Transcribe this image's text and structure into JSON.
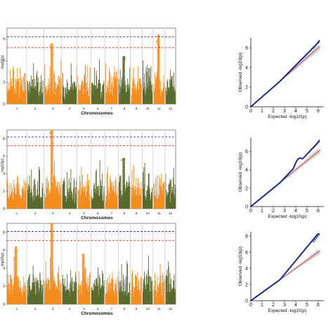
{
  "colors": {
    "orange": "#F28C1E",
    "green": "#5B6B2E",
    "blue_line": "#2F3FCC",
    "red_line": "#D23C3C",
    "qq_points": "#1A2A8C",
    "qq_line": "#D04848",
    "ci_band": "#C8C8C8"
  },
  "chart_data": [
    {
      "type": "scatter",
      "kind": "manhattan",
      "xlabel": "Chromosomes",
      "ylabel": "-log10(p)",
      "chromosomes": [
        "1",
        "2",
        "3",
        "4",
        "5",
        "6",
        "7",
        "8",
        "9",
        "10",
        "11",
        "12"
      ],
      "ylim": [
        0,
        7
      ],
      "yticks": [
        "0",
        "2",
        "4",
        "6"
      ],
      "thresholds": [
        6.2,
        5.2
      ],
      "peaks": [
        {
          "chromosome": "3",
          "value": 5.6
        },
        {
          "chromosome": "8",
          "value": 4.4
        },
        {
          "chromosome": "11",
          "value": 6.4
        }
      ]
    },
    {
      "type": "scatter",
      "kind": "qq",
      "xlabel": "Expected -log10(p)",
      "ylabel": "Observed -log10(p)",
      "xlim": [
        0,
        6.5
      ],
      "ylim": [
        0,
        7
      ],
      "xticks": [
        "0",
        "1",
        "2",
        "3",
        "4",
        "5",
        "6"
      ],
      "yticks": [
        "0",
        "2",
        "4",
        "6"
      ]
    },
    {
      "type": "scatter",
      "kind": "manhattan",
      "xlabel": "Chromosomes",
      "ylabel": "-log10(p)",
      "chromosomes": [
        "1",
        "2",
        "3",
        "4",
        "5",
        "6",
        "7",
        "8",
        "9",
        "10",
        "11",
        "12"
      ],
      "ylim": [
        0,
        9
      ],
      "yticks": [
        "0",
        "2",
        "4",
        "6",
        "8"
      ],
      "thresholds": [
        8.2,
        7.2
      ],
      "peaks": [
        {
          "chromosome": "3",
          "value": 9.0
        },
        {
          "chromosome": "8",
          "value": 5.8
        }
      ]
    },
    {
      "type": "scatter",
      "kind": "qq",
      "xlabel": "Expected -log10(p)",
      "ylabel": "Observed -log10(p)",
      "xlim": [
        0,
        6.5
      ],
      "ylim": [
        0,
        7.5
      ],
      "xticks": [
        "0",
        "1",
        "2",
        "3",
        "4",
        "5",
        "6"
      ],
      "yticks": [
        "0",
        "2",
        "4",
        "6"
      ]
    },
    {
      "type": "scatter",
      "kind": "manhattan",
      "xlabel": "Chromosomes",
      "ylabel": "-log10(p)",
      "chromosomes": [
        "1",
        "2",
        "3",
        "4",
        "5",
        "6",
        "7",
        "8",
        "9",
        "10",
        "11",
        "12"
      ],
      "ylim": [
        0,
        9
      ],
      "yticks": [
        "0",
        "2",
        "4",
        "6",
        "8"
      ],
      "thresholds": [
        8.1,
        7.1
      ],
      "peaks": [
        {
          "chromosome": "1",
          "value": 6.4
        },
        {
          "chromosome": "3",
          "value": 9.0
        },
        {
          "chromosome": "5",
          "value": 5.6
        }
      ]
    },
    {
      "type": "scatter",
      "kind": "qq",
      "xlabel": "Expected -log10(p)",
      "ylabel": "Observed -log10(p)",
      "xlim": [
        0,
        6.5
      ],
      "ylim": [
        0,
        8.5
      ],
      "xticks": [
        "0",
        "1",
        "2",
        "3",
        "4",
        "5",
        "6"
      ],
      "yticks": [
        "0",
        "2",
        "4",
        "6",
        "8"
      ]
    }
  ]
}
